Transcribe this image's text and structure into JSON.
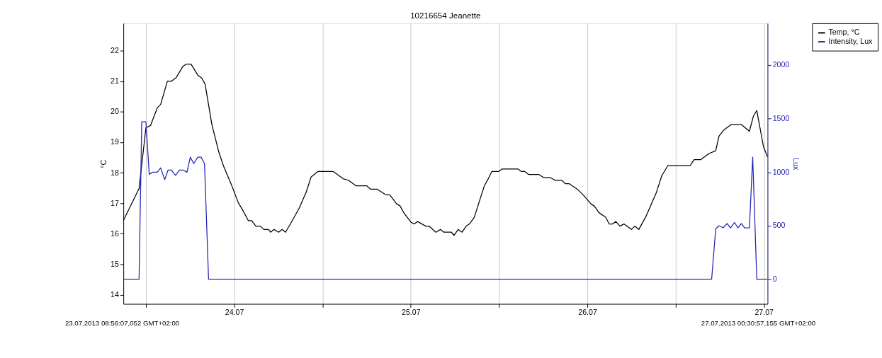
{
  "chart_data": {
    "type": "line",
    "title": "10216654 Jeanette",
    "ylabel": "°C",
    "y2label": "Lux",
    "xlim": [
      "2013-07-23T08:56",
      "2013-07-27T00:30"
    ],
    "xticks": [
      {
        "value": "2013-07-23T12:00",
        "label": null
      },
      {
        "value": "2013-07-24T00:00",
        "label": "24.07"
      },
      {
        "value": "2013-07-24T12:00",
        "label": null
      },
      {
        "value": "2013-07-25T00:00",
        "label": "25.07"
      },
      {
        "value": "2013-07-25T12:00",
        "label": null
      },
      {
        "value": "2013-07-26T00:00",
        "label": "26.07"
      },
      {
        "value": "2013-07-26T12:00",
        "label": null
      },
      {
        "value": "2013-07-27T00:00",
        "label": "27.07"
      }
    ],
    "ylim": [
      13.7,
      22.9
    ],
    "yticks": [
      14,
      15,
      16,
      17,
      18,
      19,
      20,
      21,
      22
    ],
    "y2lim": [
      -230,
      2390
    ],
    "y2ticks": [
      0,
      500,
      1000,
      1500,
      2000
    ],
    "grid": "x",
    "legend": "top right",
    "annotations": [
      "23.07.2013 08:56:07,052  GMT+02:00",
      "27.07.2013 00:30:57,155  GMT+02:00"
    ],
    "series": [
      {
        "name": "Temp, °C",
        "color": "#000000",
        "x": [
          "2013-07-23T08:56",
          "2013-07-23T11:04",
          "2013-07-23T12:00",
          "2013-07-23T12:38",
          "2013-07-23T13:33",
          "2013-07-23T14:00",
          "2013-07-23T14:55",
          "2013-07-23T15:28",
          "2013-07-23T16:07",
          "2013-07-23T17:02",
          "2013-07-23T17:29",
          "2013-07-23T18:08",
          "2013-07-23T19:03",
          "2013-07-23T19:36",
          "2013-07-23T20:03",
          "2013-07-23T20:58",
          "2013-07-23T21:53",
          "2013-07-23T22:32",
          "2013-07-23T23:38",
          "2013-07-24T00:33",
          "2013-07-24T01:06",
          "2013-07-24T01:55",
          "2013-07-24T02:23",
          "2013-07-24T02:56",
          "2013-07-24T03:34",
          "2013-07-24T04:02",
          "2013-07-24T04:40",
          "2013-07-24T04:57",
          "2013-07-24T05:24",
          "2013-07-24T06:03",
          "2013-07-24T06:30",
          "2013-07-24T06:58",
          "2013-07-24T07:31",
          "2013-07-24T08:48",
          "2013-07-24T09:48",
          "2013-07-24T10:27",
          "2013-07-24T11:22",
          "2013-07-24T13:28",
          "2013-07-24T14:51",
          "2013-07-24T15:29",
          "2013-07-24T16:35",
          "2013-07-24T18:03",
          "2013-07-24T18:31",
          "2013-07-24T19:26",
          "2013-07-24T20:32",
          "2013-07-24T21:10",
          "2013-07-24T22:05",
          "2013-07-24T22:33",
          "2013-07-24T23:06",
          "2013-07-25T00:01",
          "2013-07-25T00:28",
          "2013-07-25T00:56",
          "2013-07-25T02:02",
          "2013-07-25T02:29",
          "2013-07-25T03:24",
          "2013-07-25T04:03",
          "2013-07-25T04:30",
          "2013-07-25T05:31",
          "2013-07-25T05:53",
          "2013-07-25T06:26",
          "2013-07-25T06:59",
          "2013-07-25T07:32",
          "2013-07-25T07:59",
          "2013-07-25T08:38",
          "2013-07-25T10:00",
          "2013-07-25T10:33",
          "2013-07-25T11:01",
          "2013-07-25T11:56",
          "2013-07-25T12:23",
          "2013-07-25T14:35",
          "2013-07-25T15:03",
          "2013-07-25T15:30",
          "2013-07-25T16:03",
          "2013-07-25T17:26",
          "2013-07-25T18:04",
          "2013-07-25T18:59",
          "2013-07-25T19:38",
          "2013-07-25T20:33",
          "2013-07-25T21:00",
          "2013-07-25T21:33",
          "2013-07-25T22:39",
          "2013-07-25T23:34",
          "2013-07-26T00:29",
          "2013-07-26T00:57",
          "2013-07-26T01:35",
          "2013-07-26T02:30",
          "2013-07-26T02:58",
          "2013-07-26T03:25",
          "2013-07-26T03:53",
          "2013-07-26T04:26",
          "2013-07-26T04:59",
          "2013-07-26T06:00",
          "2013-07-26T06:27",
          "2013-07-26T07:00",
          "2013-07-26T08:00",
          "2013-07-26T09:23",
          "2013-07-26T10:07",
          "2013-07-26T10:56",
          "2013-07-26T13:58",
          "2013-07-26T14:31",
          "2013-07-26T15:26",
          "2013-07-26T16:32",
          "2013-07-26T17:27",
          "2013-07-26T17:54",
          "2013-07-26T18:33",
          "2013-07-26T19:33",
          "2013-07-26T20:56",
          "2013-07-26T22:02",
          "2013-07-26T22:35",
          "2013-07-26T23:02",
          "2013-07-26T23:57",
          "2013-07-27T00:30"
        ],
        "values": [
          16.43,
          17.48,
          19.47,
          19.55,
          20.13,
          20.24,
          21.0,
          21.0,
          21.12,
          21.49,
          21.56,
          21.56,
          21.2,
          21.1,
          20.9,
          19.58,
          18.7,
          18.23,
          17.6,
          17.02,
          16.8,
          16.43,
          16.43,
          16.25,
          16.25,
          16.14,
          16.14,
          16.05,
          16.14,
          16.05,
          16.14,
          16.05,
          16.27,
          16.82,
          17.37,
          17.86,
          18.04,
          18.04,
          17.8,
          17.76,
          17.57,
          17.57,
          17.46,
          17.46,
          17.29,
          17.27,
          16.98,
          16.91,
          16.67,
          16.38,
          16.32,
          16.4,
          16.25,
          16.25,
          16.05,
          16.14,
          16.05,
          16.05,
          15.95,
          16.14,
          16.05,
          16.25,
          16.32,
          16.54,
          17.57,
          17.81,
          18.04,
          18.04,
          18.12,
          18.12,
          18.04,
          18.04,
          17.94,
          17.94,
          17.84,
          17.84,
          17.75,
          17.75,
          17.64,
          17.64,
          17.46,
          17.24,
          16.98,
          16.91,
          16.69,
          16.54,
          16.32,
          16.32,
          16.4,
          16.25,
          16.32,
          16.14,
          16.25,
          16.14,
          16.58,
          17.35,
          17.9,
          18.23,
          18.23,
          18.43,
          18.43,
          18.63,
          18.72,
          19.2,
          19.4,
          19.58,
          19.58,
          19.36,
          19.86,
          20.04,
          18.85,
          18.52
        ]
      },
      {
        "name": "Intensity, Lux",
        "color": "#2424b4",
        "axis": "y2",
        "x": [
          "2013-07-23T08:56",
          "2013-07-23T11:04",
          "2013-07-23T11:26",
          "2013-07-23T12:00",
          "2013-07-23T12:27",
          "2013-07-23T12:54",
          "2013-07-23T13:33",
          "2013-07-23T14:00",
          "2013-07-23T14:33",
          "2013-07-23T15:01",
          "2013-07-23T15:28",
          "2013-07-23T16:01",
          "2013-07-23T16:34",
          "2013-07-23T17:02",
          "2013-07-23T17:35",
          "2013-07-23T18:02",
          "2013-07-23T18:30",
          "2013-07-23T19:03",
          "2013-07-23T19:30",
          "2013-07-23T19:58",
          "2013-07-23T20:31",
          "2013-07-26T16:54",
          "2013-07-26T17:27",
          "2013-07-26T17:54",
          "2013-07-26T18:27",
          "2013-07-26T19:00",
          "2013-07-26T19:28",
          "2013-07-26T20:01",
          "2013-07-26T20:28",
          "2013-07-26T20:56",
          "2013-07-26T21:23",
          "2013-07-26T22:02",
          "2013-07-26T22:29",
          "2013-07-26T23:02",
          "2013-07-27T00:30"
        ],
        "values": [
          0,
          0,
          1470,
          1470,
          980,
          1000,
          1000,
          1040,
          930,
          1020,
          1020,
          970,
          1020,
          1020,
          1000,
          1140,
          1080,
          1140,
          1140,
          1080,
          0,
          0,
          470,
          500,
          480,
          520,
          480,
          530,
          480,
          520,
          480,
          480,
          1140,
          0,
          0
        ]
      }
    ]
  }
}
